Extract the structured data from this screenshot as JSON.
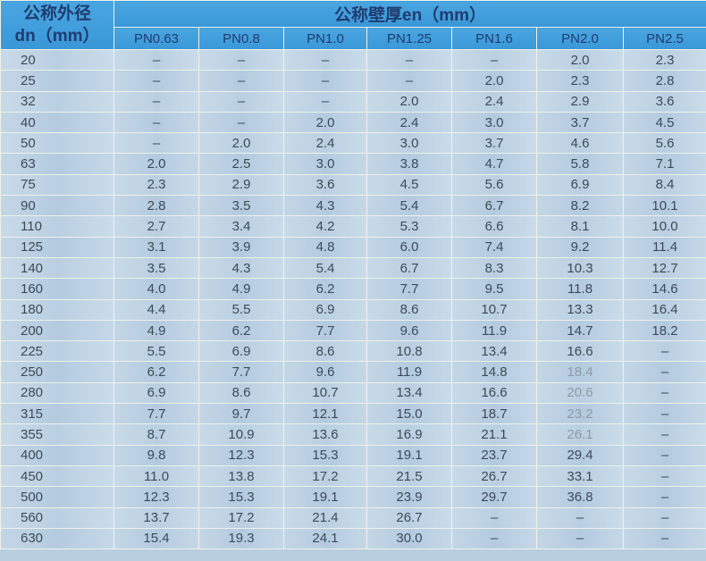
{
  "header": {
    "diameter_label_line1": "公称外径",
    "diameter_label_line2": "dn（mm）",
    "thickness_label": "公称壁厚en（mm）",
    "columns": [
      "PN0.63",
      "PN0.8",
      "PN1.0",
      "PN1.25",
      "PN1.6",
      "PN2.0",
      "PN2.5"
    ]
  },
  "rows": [
    {
      "dn": "20",
      "values": [
        "–",
        "–",
        "–",
        "–",
        "–",
        "2.0",
        "2.3"
      ]
    },
    {
      "dn": "25",
      "values": [
        "–",
        "–",
        "–",
        "–",
        "2.0",
        "2.3",
        "2.8"
      ]
    },
    {
      "dn": "32",
      "values": [
        "–",
        "–",
        "–",
        "2.0",
        "2.4",
        "2.9",
        "3.6"
      ]
    },
    {
      "dn": "40",
      "values": [
        "–",
        "–",
        "2.0",
        "2.4",
        "3.0",
        "3.7",
        "4.5"
      ]
    },
    {
      "dn": "50",
      "values": [
        "–",
        "2.0",
        "2.4",
        "3.0",
        "3.7",
        "4.6",
        "5.6"
      ]
    },
    {
      "dn": "63",
      "values": [
        "2.0",
        "2.5",
        "3.0",
        "3.8",
        "4.7",
        "5.8",
        "7.1"
      ]
    },
    {
      "dn": "75",
      "values": [
        "2.3",
        "2.9",
        "3.6",
        "4.5",
        "5.6",
        "6.9",
        "8.4"
      ]
    },
    {
      "dn": "90",
      "values": [
        "2.8",
        "3.5",
        "4.3",
        "5.4",
        "6.7",
        "8.2",
        "10.1"
      ]
    },
    {
      "dn": "110",
      "values": [
        "2.7",
        "3.4",
        "4.2",
        "5.3",
        "6.6",
        "8.1",
        "10.0"
      ]
    },
    {
      "dn": "125",
      "values": [
        "3.1",
        "3.9",
        "4.8",
        "6.0",
        "7.4",
        "9.2",
        "11.4"
      ]
    },
    {
      "dn": "140",
      "values": [
        "3.5",
        "4.3",
        "5.4",
        "6.7",
        "8.3",
        "10.3",
        "12.7"
      ]
    },
    {
      "dn": "160",
      "values": [
        "4.0",
        "4.9",
        "6.2",
        "7.7",
        "9.5",
        "11.8",
        "14.6"
      ]
    },
    {
      "dn": "180",
      "values": [
        "4.4",
        "5.5",
        "6.9",
        "8.6",
        "10.7",
        "13.3",
        "16.4"
      ]
    },
    {
      "dn": "200",
      "values": [
        "4.9",
        "6.2",
        "7.7",
        "9.6",
        "11.9",
        "14.7",
        "18.2"
      ]
    },
    {
      "dn": "225",
      "values": [
        "5.5",
        "6.9",
        "8.6",
        "10.8",
        "13.4",
        "16.6",
        "–"
      ]
    },
    {
      "dn": "250",
      "values": [
        "6.2",
        "7.7",
        "9.6",
        "11.9",
        "14.8",
        "18.4",
        "–"
      ]
    },
    {
      "dn": "280",
      "values": [
        "6.9",
        "8.6",
        "10.7",
        "13.4",
        "16.6",
        "20.6",
        "–"
      ]
    },
    {
      "dn": "315",
      "values": [
        "7.7",
        "9.7",
        "12.1",
        "15.0",
        "18.7",
        "23.2",
        "–"
      ]
    },
    {
      "dn": "355",
      "values": [
        "8.7",
        "10.9",
        "13.6",
        "16.9",
        "21.1",
        "26.1",
        "–"
      ]
    },
    {
      "dn": "400",
      "values": [
        "9.8",
        "12.3",
        "15.3",
        "19.1",
        "23.7",
        "29.4",
        "–"
      ]
    },
    {
      "dn": "450",
      "values": [
        "11.0",
        "13.8",
        "17.2",
        "21.5",
        "26.7",
        "33.1",
        "–"
      ]
    },
    {
      "dn": "500",
      "values": [
        "12.3",
        "15.3",
        "19.1",
        "23.9",
        "29.7",
        "36.8",
        "–"
      ]
    },
    {
      "dn": "560",
      "values": [
        "13.7",
        "17.2",
        "21.4",
        "26.7",
        "–",
        "–",
        "–"
      ]
    },
    {
      "dn": "630",
      "values": [
        "15.4",
        "19.3",
        "24.1",
        "30.0",
        "–",
        "–",
        "–"
      ]
    }
  ]
}
